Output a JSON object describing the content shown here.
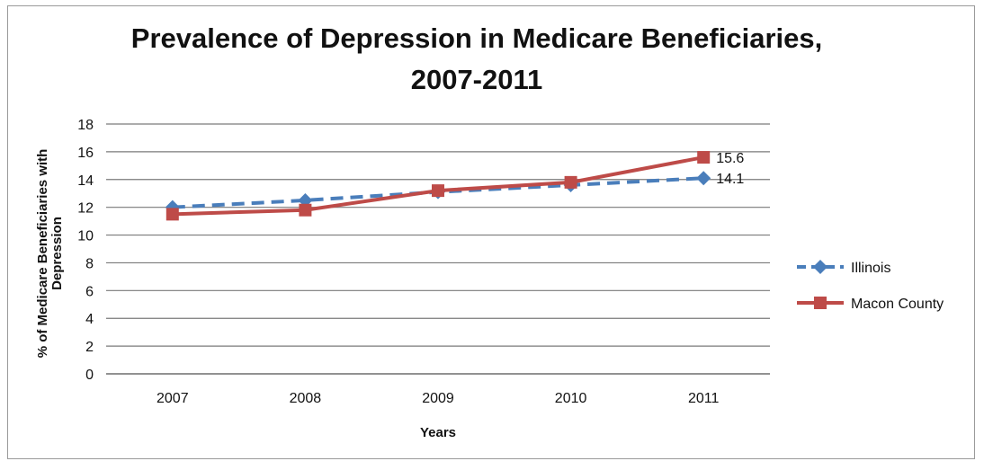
{
  "chart_data": {
    "type": "line",
    "title_line1": "Prevalence of Depression in Medicare Beneficiaries,",
    "title_line2": "2007-2011",
    "xlabel": "Years",
    "ylabel_line1": "% of Medicare Beneficiaries with",
    "ylabel_line2": "Depression",
    "categories": [
      "2007",
      "2008",
      "2009",
      "2010",
      "2011"
    ],
    "ylim": [
      0,
      18
    ],
    "yticks": [
      0,
      2,
      4,
      6,
      8,
      10,
      12,
      14,
      16,
      18
    ],
    "grid": true,
    "legend_position": "right",
    "series": [
      {
        "name": "Illinois",
        "values": [
          12.0,
          12.5,
          13.1,
          13.6,
          14.1
        ],
        "color": "#4a7ebb",
        "style": "dashed",
        "marker": "diamond",
        "end_label": "14.1"
      },
      {
        "name": "Macon County",
        "values": [
          11.5,
          11.8,
          13.2,
          13.8,
          15.6
        ],
        "color": "#be4b48",
        "style": "solid",
        "marker": "square",
        "end_label": "15.6"
      }
    ]
  }
}
